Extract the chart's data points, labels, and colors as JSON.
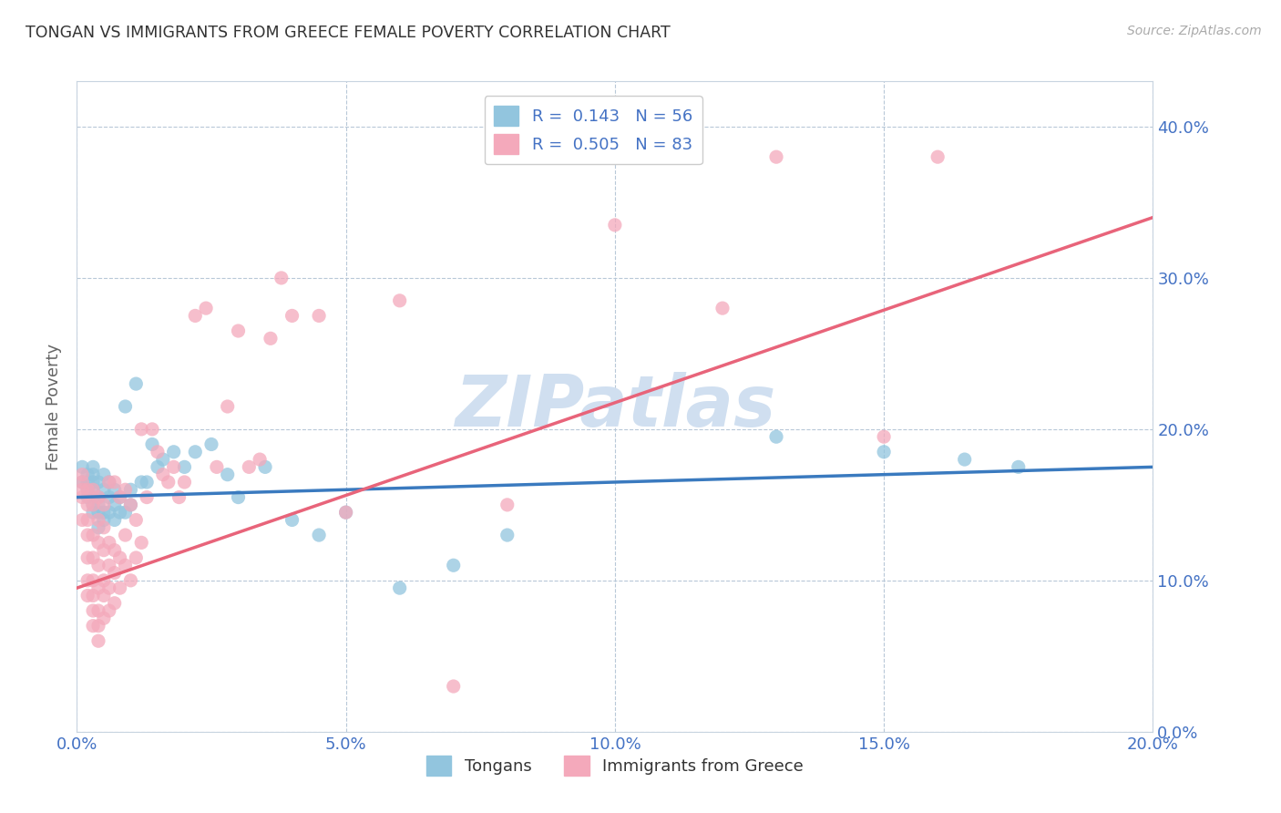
{
  "title": "TONGAN VS IMMIGRANTS FROM GREECE FEMALE POVERTY CORRELATION CHART",
  "source": "Source: ZipAtlas.com",
  "xlabel_ticks": [
    "0.0%",
    "5.0%",
    "10.0%",
    "15.0%",
    "20.0%"
  ],
  "ylabel_ticks": [
    "0.0%",
    "10.0%",
    "20.0%",
    "30.0%",
    "40.0%"
  ],
  "xlim": [
    0.0,
    0.2
  ],
  "ylim": [
    0.0,
    0.43
  ],
  "ylabel": "Female Poverty",
  "legend_bottom": [
    "Tongans",
    "Immigrants from Greece"
  ],
  "blue_R": "R =  0.143",
  "blue_N": "N = 56",
  "pink_R": "R =  0.505",
  "pink_N": "N = 83",
  "blue_color": "#92c5de",
  "pink_color": "#f4a9bb",
  "blue_line_color": "#3a7abf",
  "pink_line_color": "#e8647a",
  "watermark_color": "#d0dff0",
  "blue_scatter_x": [
    0.001,
    0.001,
    0.002,
    0.002,
    0.002,
    0.002,
    0.003,
    0.003,
    0.003,
    0.003,
    0.003,
    0.003,
    0.004,
    0.004,
    0.004,
    0.004,
    0.004,
    0.005,
    0.005,
    0.005,
    0.005,
    0.006,
    0.006,
    0.006,
    0.007,
    0.007,
    0.007,
    0.008,
    0.008,
    0.009,
    0.009,
    0.01,
    0.01,
    0.011,
    0.012,
    0.013,
    0.014,
    0.015,
    0.016,
    0.018,
    0.02,
    0.022,
    0.025,
    0.028,
    0.03,
    0.035,
    0.04,
    0.045,
    0.05,
    0.06,
    0.07,
    0.08,
    0.13,
    0.15,
    0.165,
    0.175
  ],
  "blue_scatter_y": [
    0.165,
    0.175,
    0.155,
    0.16,
    0.165,
    0.17,
    0.145,
    0.15,
    0.16,
    0.165,
    0.17,
    0.175,
    0.135,
    0.145,
    0.15,
    0.155,
    0.165,
    0.14,
    0.145,
    0.16,
    0.17,
    0.145,
    0.155,
    0.165,
    0.14,
    0.15,
    0.16,
    0.145,
    0.155,
    0.145,
    0.215,
    0.15,
    0.16,
    0.23,
    0.165,
    0.165,
    0.19,
    0.175,
    0.18,
    0.185,
    0.175,
    0.185,
    0.19,
    0.17,
    0.155,
    0.175,
    0.14,
    0.13,
    0.145,
    0.095,
    0.11,
    0.13,
    0.195,
    0.185,
    0.18,
    0.175
  ],
  "pink_scatter_x": [
    0.001,
    0.001,
    0.001,
    0.001,
    0.001,
    0.002,
    0.002,
    0.002,
    0.002,
    0.002,
    0.002,
    0.002,
    0.003,
    0.003,
    0.003,
    0.003,
    0.003,
    0.003,
    0.003,
    0.003,
    0.004,
    0.004,
    0.004,
    0.004,
    0.004,
    0.004,
    0.004,
    0.004,
    0.005,
    0.005,
    0.005,
    0.005,
    0.005,
    0.005,
    0.006,
    0.006,
    0.006,
    0.006,
    0.006,
    0.007,
    0.007,
    0.007,
    0.007,
    0.008,
    0.008,
    0.008,
    0.009,
    0.009,
    0.009,
    0.01,
    0.01,
    0.011,
    0.011,
    0.012,
    0.012,
    0.013,
    0.014,
    0.015,
    0.016,
    0.017,
    0.018,
    0.019,
    0.02,
    0.022,
    0.024,
    0.026,
    0.028,
    0.03,
    0.032,
    0.034,
    0.036,
    0.038,
    0.04,
    0.045,
    0.05,
    0.06,
    0.07,
    0.08,
    0.1,
    0.12,
    0.13,
    0.15,
    0.16
  ],
  "pink_scatter_y": [
    0.155,
    0.16,
    0.165,
    0.17,
    0.14,
    0.09,
    0.1,
    0.115,
    0.13,
    0.14,
    0.15,
    0.16,
    0.07,
    0.08,
    0.09,
    0.1,
    0.115,
    0.13,
    0.15,
    0.16,
    0.06,
    0.07,
    0.08,
    0.095,
    0.11,
    0.125,
    0.14,
    0.155,
    0.075,
    0.09,
    0.1,
    0.12,
    0.135,
    0.15,
    0.08,
    0.095,
    0.11,
    0.125,
    0.165,
    0.085,
    0.105,
    0.12,
    0.165,
    0.095,
    0.115,
    0.155,
    0.11,
    0.13,
    0.16,
    0.1,
    0.15,
    0.115,
    0.14,
    0.125,
    0.2,
    0.155,
    0.2,
    0.185,
    0.17,
    0.165,
    0.175,
    0.155,
    0.165,
    0.275,
    0.28,
    0.175,
    0.215,
    0.265,
    0.175,
    0.18,
    0.26,
    0.3,
    0.275,
    0.275,
    0.145,
    0.285,
    0.03,
    0.15,
    0.335,
    0.28,
    0.38,
    0.195,
    0.38
  ]
}
